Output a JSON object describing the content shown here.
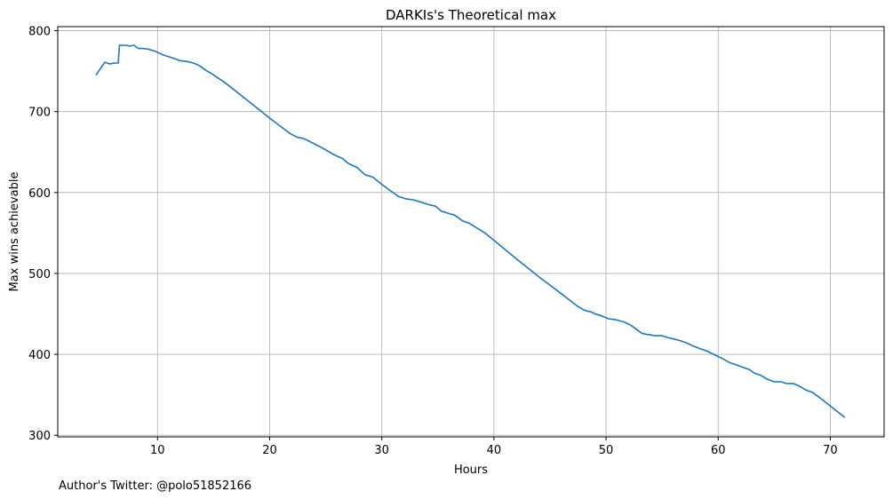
{
  "chart_data": {
    "type": "line",
    "title": "DARKIs's Theoretical max",
    "xlabel": "Hours",
    "ylabel": "Max wins achievable",
    "xlim": [
      1.1,
      74.8
    ],
    "ylim": [
      298,
      805
    ],
    "xticks": [
      10,
      20,
      30,
      40,
      50,
      60,
      70
    ],
    "yticks": [
      300,
      400,
      500,
      600,
      700,
      800
    ],
    "grid": true,
    "line_color": "#1f77b4",
    "series": [
      {
        "x": [
          4.5,
          5.3,
          5.7,
          6.2,
          6.5,
          6.6,
          7.2,
          7.5,
          7.9,
          8.3,
          8.7,
          9.2,
          9.7,
          10.5,
          11.2,
          12.0,
          12.6,
          13.2,
          13.7,
          14.3,
          14.7,
          16.0,
          18.0,
          20.0,
          21.8,
          22.5,
          23.0,
          24.0,
          24.7,
          25.7,
          26.5,
          27.0,
          27.8,
          28.5,
          29.2,
          30.0,
          30.7,
          31.5,
          32.2,
          32.8,
          33.5,
          34.2,
          34.8,
          35.3,
          36.0,
          36.5,
          37.2,
          37.8,
          38.5,
          39.2,
          40.0,
          42.0,
          44.0,
          46.0,
          47.5,
          48.0,
          48.4,
          48.6,
          49.0,
          49.5,
          50.2,
          50.8,
          51.6,
          52.2,
          52.7,
          53.2,
          53.5,
          54.0,
          54.3,
          55.0,
          55.4,
          56.0,
          56.6,
          57.2,
          57.8,
          58.4,
          59.0,
          59.6,
          60.2,
          61.0,
          61.6,
          62.2,
          62.8,
          63.2,
          63.8,
          64.4,
          65.0,
          65.6,
          66.1,
          66.7,
          67.2,
          67.8,
          68.4,
          69.2,
          70.2,
          71.3
        ],
        "y": [
          745,
          761,
          759,
          760,
          760,
          782,
          782,
          781,
          782,
          778,
          778,
          777,
          775,
          770,
          767,
          763,
          762,
          760,
          757,
          751,
          748,
          736,
          714,
          692,
          673,
          668,
          667,
          660,
          655,
          647,
          642,
          636,
          631,
          622,
          619,
          610,
          603,
          595,
          592,
          591,
          588,
          585,
          583,
          577,
          574,
          572,
          565,
          562,
          556,
          550,
          541,
          518,
          496,
          475,
          459,
          455,
          453,
          453,
          450,
          448,
          444,
          443,
          440,
          436,
          431,
          426,
          425,
          424,
          423,
          423,
          421,
          419,
          417,
          414,
          410,
          407,
          404,
          400,
          396,
          390,
          387,
          384,
          381,
          377,
          374,
          369,
          366,
          366,
          364,
          364,
          361,
          356,
          353,
          345,
          334,
          322
        ]
      }
    ]
  },
  "footnote": "Author's Twitter: @polo51852166"
}
